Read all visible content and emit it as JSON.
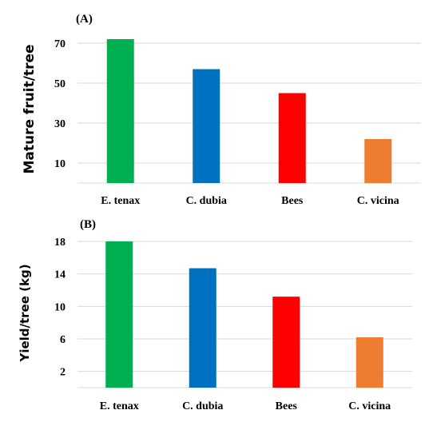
{
  "chart_data": [
    {
      "type": "bar",
      "panel_label": "(A)",
      "ylabel": "Mature fruit/tree",
      "categories": [
        "E. tenax",
        "C. dubia",
        "Bees",
        "C. vicina"
      ],
      "values": [
        72,
        57,
        45,
        22
      ],
      "colors": [
        "#00b050",
        "#0070c0",
        "#ff0000",
        "#ed7d31"
      ],
      "yticks": [
        10,
        30,
        50,
        70
      ],
      "ylim": [
        0,
        74
      ],
      "grid": true,
      "legend": false
    },
    {
      "type": "bar",
      "panel_label": "(B)",
      "ylabel": "Yield/tree (kg)",
      "categories": [
        "E. tenax",
        "C. dubia",
        "Bees",
        "C. vicina"
      ],
      "values": [
        18,
        14.7,
        11.2,
        6.2
      ],
      "colors": [
        "#00b050",
        "#0070c0",
        "#ff0000",
        "#ed7d31"
      ],
      "yticks": [
        2,
        6,
        10,
        14,
        18
      ],
      "ylim": [
        0,
        18.4
      ],
      "grid": true,
      "legend": false
    }
  ]
}
